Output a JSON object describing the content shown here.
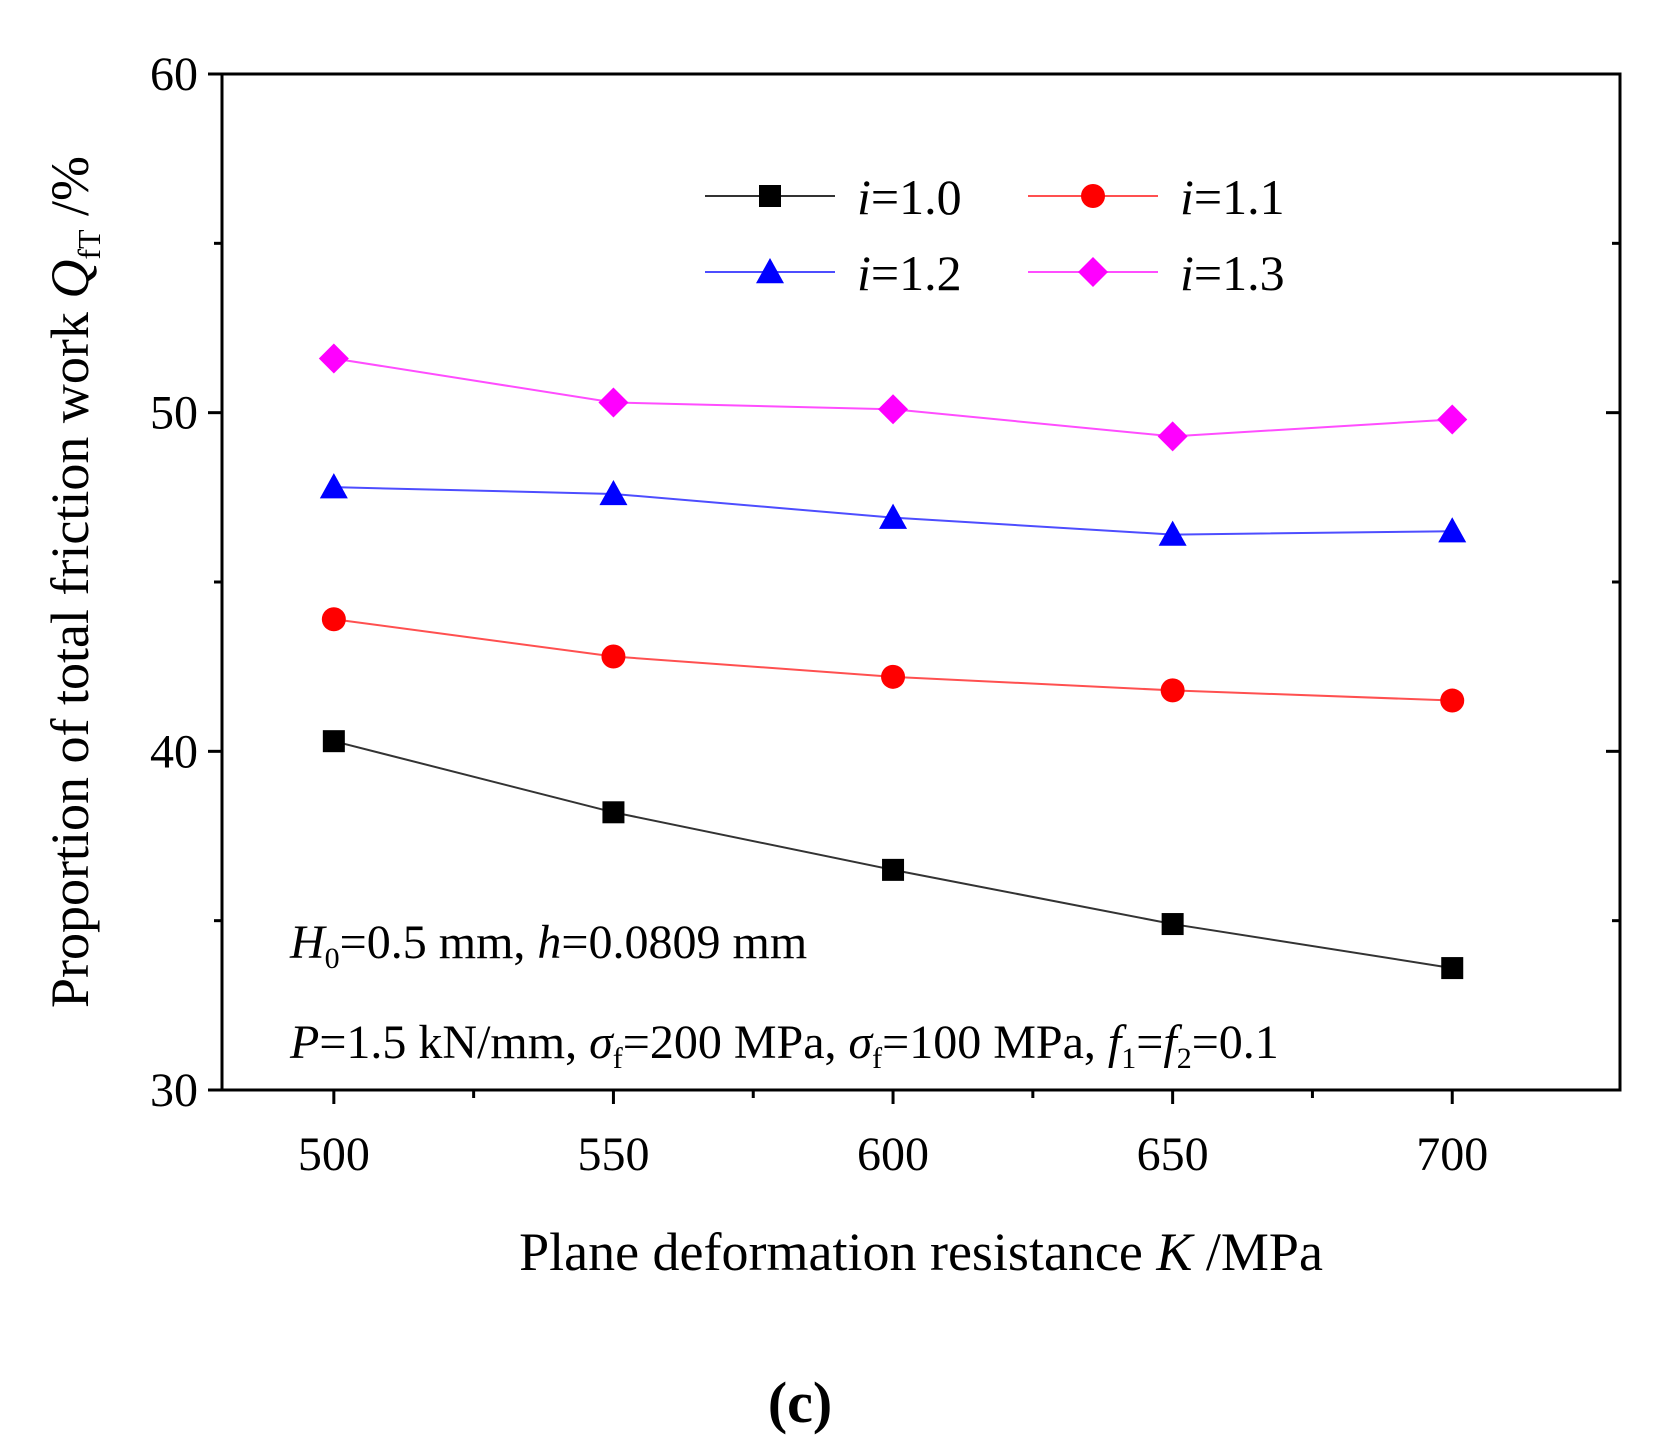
{
  "chart_data": {
    "type": "line",
    "x": [
      500,
      550,
      600,
      650,
      700
    ],
    "xlim": [
      480,
      730
    ],
    "ylim": [
      30,
      60
    ],
    "xticks": [
      "500",
      "550",
      "600",
      "650",
      "700"
    ],
    "yticks": [
      "30",
      "40",
      "50",
      "60"
    ],
    "xlabel": {
      "main": "Plane deformation resistance ",
      "var": "K",
      "unit": " /MPa"
    },
    "ylabel": {
      "main": "Proportion of total friction work  ",
      "var": "Q",
      "sub": "fT",
      "unit": " /%"
    },
    "series": [
      {
        "name": "i=1.0",
        "var": "i",
        "eq": "=1.0",
        "color": "#000000",
        "line_color": "#333333",
        "marker": "square",
        "values": [
          40.3,
          38.2,
          36.5,
          34.9,
          33.6
        ]
      },
      {
        "name": "i=1.1",
        "var": "i",
        "eq": "=1.1",
        "color": "#ff0000",
        "line_color": "#ff5050",
        "marker": "circle",
        "values": [
          43.9,
          42.8,
          42.2,
          41.8,
          41.5
        ]
      },
      {
        "name": "i=1.2",
        "var": "i",
        "eq": "=1.2",
        "color": "#0000ff",
        "line_color": "#4d4dff",
        "marker": "triangle",
        "values": [
          47.8,
          47.6,
          46.9,
          46.4,
          46.5
        ]
      },
      {
        "name": "i=1.3",
        "var": "i",
        "eq": "=1.3",
        "color": "#ff00ff",
        "line_color": "#ff4dff",
        "marker": "diamond",
        "values": [
          51.6,
          50.3,
          50.1,
          49.3,
          49.8
        ]
      }
    ],
    "annotations": {
      "line1": {
        "H": "H",
        "H_sub": "0",
        "t1": "=0.5 mm, ",
        "h": "h",
        "t2": "=0.0809 mm"
      },
      "line2": {
        "P": "P",
        "t1": "=1.5 kN/mm, ",
        "sigma1": "σ",
        "sigma1_sub": "f",
        "t2": "=200 MPa, ",
        "sigma2": "σ",
        "sigma2_sub": "f",
        "t3": "=100 MPa, ",
        "f1": "f",
        "f1_sub": "1",
        "t4": "=",
        "f2": "f",
        "f2_sub": "2",
        "t5": "=0.1"
      }
    },
    "panel_label": "(c)"
  }
}
